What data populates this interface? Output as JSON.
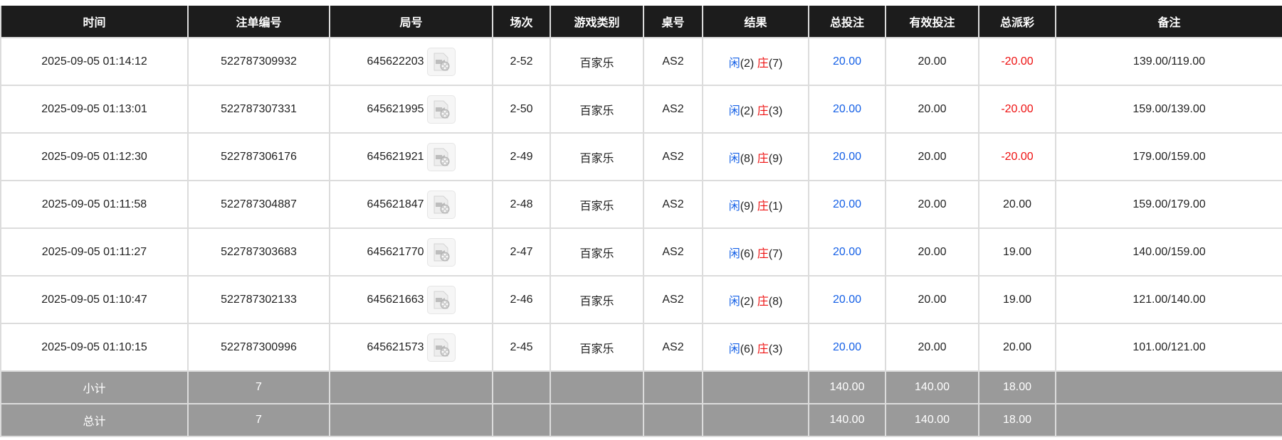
{
  "headers": [
    "时间",
    "注单编号",
    "局号",
    "场次",
    "游戏类别",
    "桌号",
    "结果",
    "总投注",
    "有效投注",
    "总派彩",
    "备注"
  ],
  "rows": [
    {
      "time": "2025-09-05 01:14:12",
      "bet_id": "522787309932",
      "round": "645622203",
      "shoe": "2-52",
      "game": "百家乐",
      "table": "AS2",
      "player_label": "闲",
      "player": "(2)",
      "banker_label": "庄",
      "banker": "(7)",
      "total_bet": "20.00",
      "valid_bet": "20.00",
      "payout": "-20.00",
      "payout_negative": true,
      "note": "139.00/119.00"
    },
    {
      "time": "2025-09-05 01:13:01",
      "bet_id": "522787307331",
      "round": "645621995",
      "shoe": "2-50",
      "game": "百家乐",
      "table": "AS2",
      "player_label": "闲",
      "player": "(2)",
      "banker_label": "庄",
      "banker": "(3)",
      "total_bet": "20.00",
      "valid_bet": "20.00",
      "payout": "-20.00",
      "payout_negative": true,
      "note": "159.00/139.00"
    },
    {
      "time": "2025-09-05 01:12:30",
      "bet_id": "522787306176",
      "round": "645621921",
      "shoe": "2-49",
      "game": "百家乐",
      "table": "AS2",
      "player_label": "闲",
      "player": "(8)",
      "banker_label": "庄",
      "banker": "(9)",
      "total_bet": "20.00",
      "valid_bet": "20.00",
      "payout": "-20.00",
      "payout_negative": true,
      "note": "179.00/159.00"
    },
    {
      "time": "2025-09-05 01:11:58",
      "bet_id": "522787304887",
      "round": "645621847",
      "shoe": "2-48",
      "game": "百家乐",
      "table": "AS2",
      "player_label": "闲",
      "player": "(9)",
      "banker_label": "庄",
      "banker": "(1)",
      "total_bet": "20.00",
      "valid_bet": "20.00",
      "payout": "20.00",
      "payout_negative": false,
      "note": "159.00/179.00"
    },
    {
      "time": "2025-09-05 01:11:27",
      "bet_id": "522787303683",
      "round": "645621770",
      "shoe": "2-47",
      "game": "百家乐",
      "table": "AS2",
      "player_label": "闲",
      "player": "(6)",
      "banker_label": "庄",
      "banker": "(7)",
      "total_bet": "20.00",
      "valid_bet": "20.00",
      "payout": "19.00",
      "payout_negative": false,
      "note": "140.00/159.00"
    },
    {
      "time": "2025-09-05 01:10:47",
      "bet_id": "522787302133",
      "round": "645621663",
      "shoe": "2-46",
      "game": "百家乐",
      "table": "AS2",
      "player_label": "闲",
      "player": "(2)",
      "banker_label": "庄",
      "banker": "(8)",
      "total_bet": "20.00",
      "valid_bet": "20.00",
      "payout": "19.00",
      "payout_negative": false,
      "note": "121.00/140.00"
    },
    {
      "time": "2025-09-05 01:10:15",
      "bet_id": "522787300996",
      "round": "645621573",
      "shoe": "2-45",
      "game": "百家乐",
      "table": "AS2",
      "player_label": "闲",
      "player": "(6)",
      "banker_label": "庄",
      "banker": "(3)",
      "total_bet": "20.00",
      "valid_bet": "20.00",
      "payout": "20.00",
      "payout_negative": false,
      "note": "101.00/121.00"
    }
  ],
  "subtotal": {
    "label": "小计",
    "count": "7",
    "total_bet": "140.00",
    "valid_bet": "140.00",
    "payout": "18.00"
  },
  "total": {
    "label": "总计",
    "count": "7",
    "total_bet": "140.00",
    "valid_bet": "140.00",
    "payout": "18.00"
  },
  "colors": {
    "header_bg": "#1c1c1c",
    "player": "#1560e6",
    "banker": "#ee1111",
    "negative": "#ee1111",
    "summary_bg": "#9a9a9a"
  },
  "icons": {
    "replay": "video-replay-icon"
  }
}
